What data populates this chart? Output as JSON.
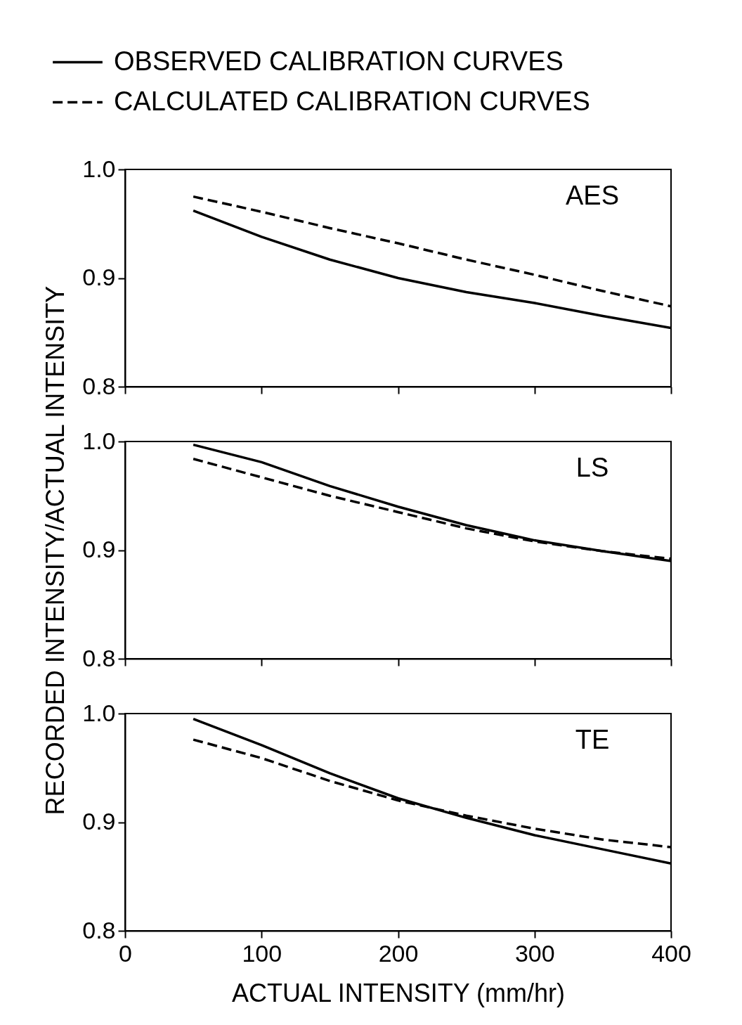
{
  "chart_data": [
    {
      "type": "line",
      "annotations": [
        "AES"
      ],
      "x": [
        50,
        100,
        150,
        200,
        250,
        300,
        350,
        400
      ],
      "xlim": [
        0,
        400
      ],
      "xticks": [
        0,
        100,
        200,
        300,
        400
      ],
      "ylim": [
        0.8,
        1.0
      ],
      "yticks": [
        {
          "value": 0.8,
          "label": "0.8"
        },
        {
          "value": 0.9,
          "label": "0.9"
        },
        {
          "value": 1.0,
          "label": "1.0"
        }
      ],
      "tick_labels": "y",
      "legend": "top",
      "grid": false,
      "series": [
        {
          "name": "OBSERVED CALIBRATION CURVES",
          "color": "#000000",
          "line_style": "solid",
          "values": [
            0.962,
            0.938,
            0.917,
            0.9,
            0.887,
            0.877,
            0.865,
            0.854
          ]
        },
        {
          "name": "CALCULATED CALIBRATION CURVES",
          "color": "#000000",
          "line_style": "dashed",
          "values": [
            0.975,
            0.961,
            0.946,
            0.932,
            0.917,
            0.903,
            0.888,
            0.874
          ]
        }
      ]
    },
    {
      "type": "line",
      "annotations": [
        "LS"
      ],
      "ylabel": "RECORDED INTENSITY/ACTUAL INTENSITY",
      "x": [
        50,
        100,
        150,
        200,
        250,
        300,
        350,
        400
      ],
      "xlim": [
        0,
        400
      ],
      "xticks": [
        0,
        100,
        200,
        300,
        400
      ],
      "ylim": [
        0.8,
        1.0
      ],
      "yticks": [
        {
          "value": 0.8,
          "label": "0.8"
        },
        {
          "value": 0.9,
          "label": "0.9"
        },
        {
          "value": 1.0,
          "label": "1.0"
        }
      ],
      "tick_labels": "y",
      "grid": false,
      "series": [
        {
          "color": "#000000",
          "line_style": "solid",
          "values": [
            0.997,
            0.981,
            0.959,
            0.94,
            0.923,
            0.909,
            0.899,
            0.89
          ]
        },
        {
          "color": "#000000",
          "line_style": "dashed",
          "values": [
            0.984,
            0.967,
            0.95,
            0.935,
            0.92,
            0.908,
            0.899,
            0.892
          ]
        }
      ]
    },
    {
      "type": "line",
      "annotations": [
        "TE"
      ],
      "xlabel": "ACTUAL INTENSITY  (mm/hr)",
      "x": [
        50,
        100,
        150,
        200,
        250,
        300,
        350,
        400
      ],
      "xlim": [
        0,
        400
      ],
      "xticks": [
        0,
        100,
        200,
        300,
        400
      ],
      "ylim": [
        0.8,
        1.0
      ],
      "yticks": [
        {
          "value": 0.8,
          "label": "0.8"
        },
        {
          "value": 0.9,
          "label": "0.9"
        },
        {
          "value": 1.0,
          "label": "1.0"
        }
      ],
      "grid": false,
      "series": [
        {
          "color": "#000000",
          "line_style": "solid",
          "values": [
            0.995,
            0.971,
            0.945,
            0.922,
            0.904,
            0.888,
            0.875,
            0.862
          ]
        },
        {
          "color": "#000000",
          "line_style": "dashed",
          "values": [
            0.976,
            0.959,
            0.938,
            0.92,
            0.906,
            0.894,
            0.884,
            0.877
          ]
        }
      ]
    }
  ]
}
